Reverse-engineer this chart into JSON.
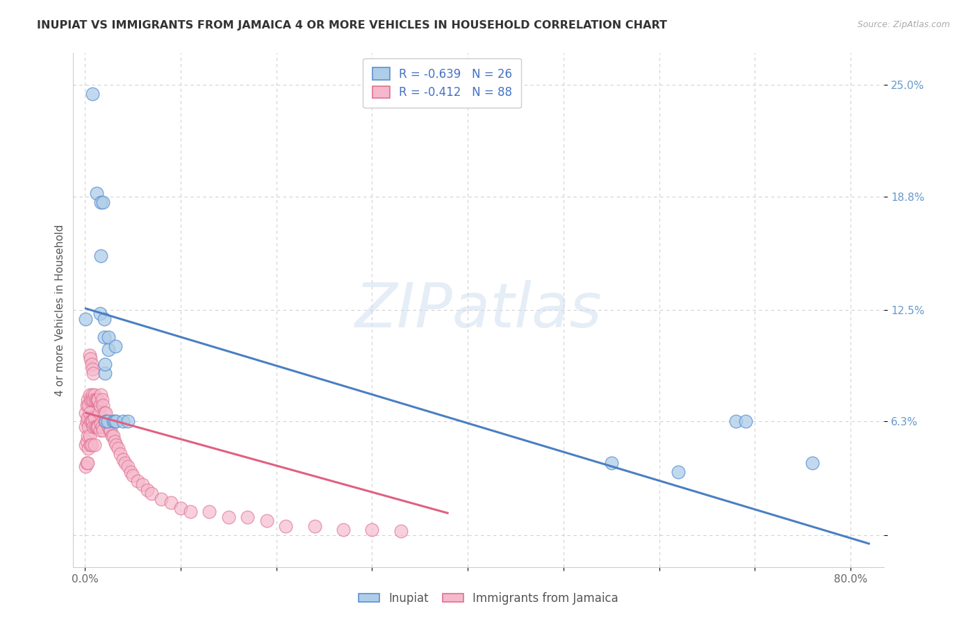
{
  "title": "INUPIAT VS IMMIGRANTS FROM JAMAICA 4 OR MORE VEHICLES IN HOUSEHOLD CORRELATION CHART",
  "source": "Source: ZipAtlas.com",
  "ylabel": "4 or more Vehicles in Household",
  "inupiat_label": "Inupiat",
  "jamaica_label": "Immigrants from Jamaica",
  "watermark": "ZIPatlas",
  "inupiat_R": -0.639,
  "inupiat_N": 26,
  "jamaica_R": -0.412,
  "jamaica_N": 88,
  "inupiat_color": "#aecde8",
  "jamaica_color": "#f5b8cc",
  "inupiat_edge_color": "#5b8fd4",
  "jamaica_edge_color": "#e07090",
  "inupiat_line_color": "#4a7fc1",
  "jamaica_line_color": "#e06080",
  "xlim": [
    -0.012,
    0.835
  ],
  "ylim": [
    -0.018,
    0.268
  ],
  "xtick_pos": [
    0.0,
    0.1,
    0.2,
    0.3,
    0.4,
    0.5,
    0.6,
    0.7,
    0.8
  ],
  "xtick_labels": [
    "0.0%",
    "",
    "",
    "",
    "",
    "",
    "",
    "",
    "80.0%"
  ],
  "ytick_pos": [
    0.0,
    0.063,
    0.125,
    0.188,
    0.25
  ],
  "ytick_labels": [
    "",
    "6.3%",
    "12.5%",
    "18.8%",
    "25.0%"
  ],
  "inupiat_line_x0": 0.0,
  "inupiat_line_y0": 0.126,
  "inupiat_line_x1": 0.82,
  "inupiat_line_y1": -0.005,
  "jamaica_line_x0": 0.0,
  "jamaica_line_y0": 0.068,
  "jamaica_line_x1": 0.38,
  "jamaica_line_y1": 0.012,
  "inupiat_x": [
    0.001,
    0.008,
    0.012,
    0.016,
    0.017,
    0.017,
    0.019,
    0.02,
    0.02,
    0.021,
    0.021,
    0.022,
    0.024,
    0.025,
    0.025,
    0.03,
    0.031,
    0.032,
    0.033,
    0.04,
    0.045,
    0.55,
    0.62,
    0.68,
    0.69,
    0.76
  ],
  "inupiat_y": [
    0.12,
    0.245,
    0.19,
    0.123,
    0.155,
    0.185,
    0.185,
    0.12,
    0.11,
    0.09,
    0.095,
    0.063,
    0.063,
    0.103,
    0.11,
    0.063,
    0.063,
    0.105,
    0.063,
    0.063,
    0.063,
    0.04,
    0.035,
    0.063,
    0.063,
    0.04
  ],
  "jamaica_x": [
    0.001,
    0.001,
    0.001,
    0.001,
    0.002,
    0.002,
    0.002,
    0.002,
    0.003,
    0.003,
    0.003,
    0.003,
    0.004,
    0.004,
    0.004,
    0.005,
    0.005,
    0.005,
    0.006,
    0.006,
    0.006,
    0.007,
    0.007,
    0.007,
    0.008,
    0.008,
    0.009,
    0.009,
    0.01,
    0.01,
    0.01,
    0.011,
    0.011,
    0.012,
    0.012,
    0.013,
    0.013,
    0.014,
    0.014,
    0.015,
    0.016,
    0.016,
    0.017,
    0.017,
    0.018,
    0.018,
    0.019,
    0.019,
    0.02,
    0.021,
    0.022,
    0.023,
    0.025,
    0.026,
    0.027,
    0.028,
    0.03,
    0.031,
    0.033,
    0.035,
    0.037,
    0.04,
    0.042,
    0.045,
    0.048,
    0.05,
    0.055,
    0.06,
    0.065,
    0.07,
    0.08,
    0.09,
    0.1,
    0.11,
    0.13,
    0.15,
    0.17,
    0.19,
    0.21,
    0.24,
    0.27,
    0.3,
    0.33,
    0.005,
    0.006,
    0.007,
    0.008,
    0.009
  ],
  "jamaica_y": [
    0.068,
    0.06,
    0.05,
    0.038,
    0.072,
    0.063,
    0.052,
    0.04,
    0.075,
    0.065,
    0.055,
    0.04,
    0.072,
    0.06,
    0.048,
    0.078,
    0.068,
    0.055,
    0.075,
    0.063,
    0.05,
    0.075,
    0.063,
    0.05,
    0.078,
    0.063,
    0.075,
    0.06,
    0.078,
    0.065,
    0.05,
    0.075,
    0.06,
    0.075,
    0.06,
    0.075,
    0.06,
    0.075,
    0.06,
    0.068,
    0.072,
    0.058,
    0.078,
    0.062,
    0.075,
    0.06,
    0.072,
    0.058,
    0.068,
    0.063,
    0.068,
    0.063,
    0.06,
    0.058,
    0.058,
    0.055,
    0.055,
    0.052,
    0.05,
    0.048,
    0.045,
    0.042,
    0.04,
    0.038,
    0.035,
    0.033,
    0.03,
    0.028,
    0.025,
    0.023,
    0.02,
    0.018,
    0.015,
    0.013,
    0.013,
    0.01,
    0.01,
    0.008,
    0.005,
    0.005,
    0.003,
    0.003,
    0.002,
    0.1,
    0.098,
    0.095,
    0.092,
    0.09
  ]
}
